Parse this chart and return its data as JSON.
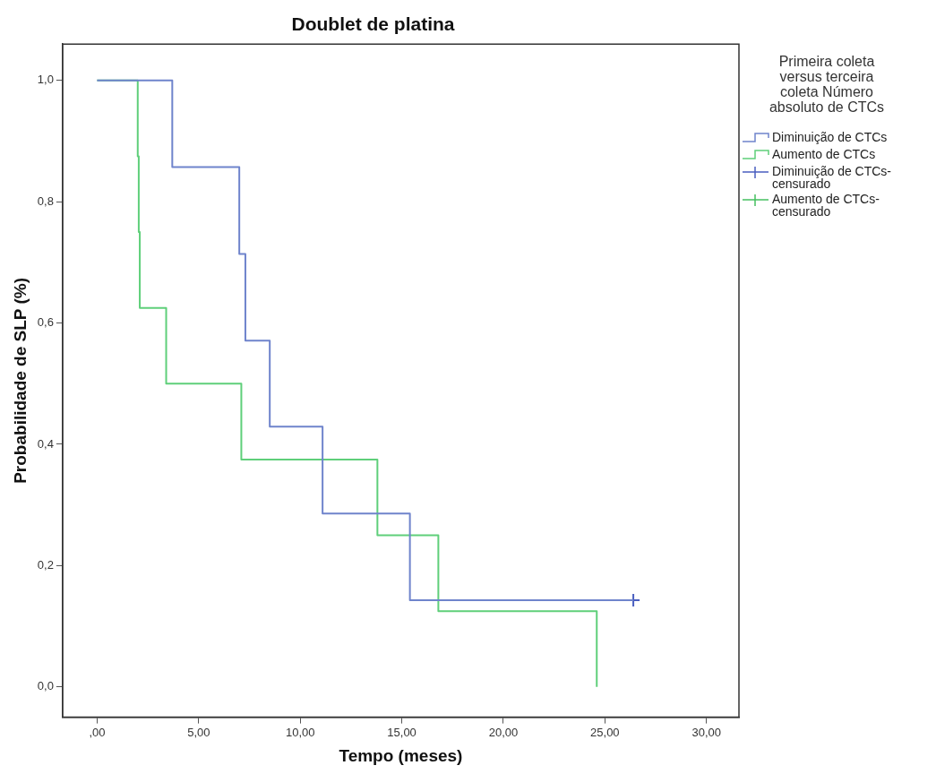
{
  "chart_data": {
    "type": "step",
    "title": "Doublet de platina",
    "xlabel": "Tempo (meses)",
    "ylabel": "Probabilidade de SLP (%)",
    "legend_title": "Primeira coleta versus terceira coleta Número absoluto de CTCs",
    "legend": "right",
    "grid": false,
    "xlim": [
      -1.7,
      31.6
    ],
    "ylim": [
      -0.05,
      1.06
    ],
    "xticks": [
      {
        "value": 0,
        "label": ",00"
      },
      {
        "value": 5,
        "label": "5,00"
      },
      {
        "value": 10,
        "label": "10,00"
      },
      {
        "value": 15,
        "label": "15,00"
      },
      {
        "value": 20,
        "label": "20,00"
      },
      {
        "value": 25,
        "label": "25,00"
      },
      {
        "value": 30,
        "label": "30,00"
      }
    ],
    "yticks": [
      {
        "value": 0,
        "label": "0,0"
      },
      {
        "value": 0.2,
        "label": "0,2"
      },
      {
        "value": 0.4,
        "label": "0,4"
      },
      {
        "value": 0.6,
        "label": "0,6"
      },
      {
        "value": 0.8,
        "label": "0,8"
      },
      {
        "value": 1,
        "label": "1,0"
      }
    ],
    "series": [
      {
        "name": "Diminuição de CTCs",
        "color": "#6f84cc",
        "marker": "none",
        "x": [
          0,
          3.7,
          7.0,
          7.3,
          8.5,
          11.1,
          15.4,
          26.4
        ],
        "values": [
          1,
          0.857,
          0.714,
          0.571,
          0.429,
          0.286,
          0.143,
          0.143
        ]
      },
      {
        "name": "Aumento de CTCs",
        "color": "#5fcf7a",
        "marker": "none",
        "x": [
          0,
          2.0,
          2.05,
          2.1,
          3.4,
          7.1,
          13.8,
          16.8,
          24.6
        ],
        "values": [
          1,
          0.875,
          0.75,
          0.625,
          0.5,
          0.375,
          0.25,
          0.125,
          0
        ]
      },
      {
        "name": "Diminuição de CTCs-censurado",
        "type": "scatter",
        "color": "#4a5fc0",
        "marker": "cross",
        "x": [
          26.4
        ],
        "values": [
          0.143
        ]
      },
      {
        "name": "Aumento de CTCs-censurado",
        "type": "scatter",
        "color": "#45c060",
        "marker": "cross"
      }
    ]
  }
}
